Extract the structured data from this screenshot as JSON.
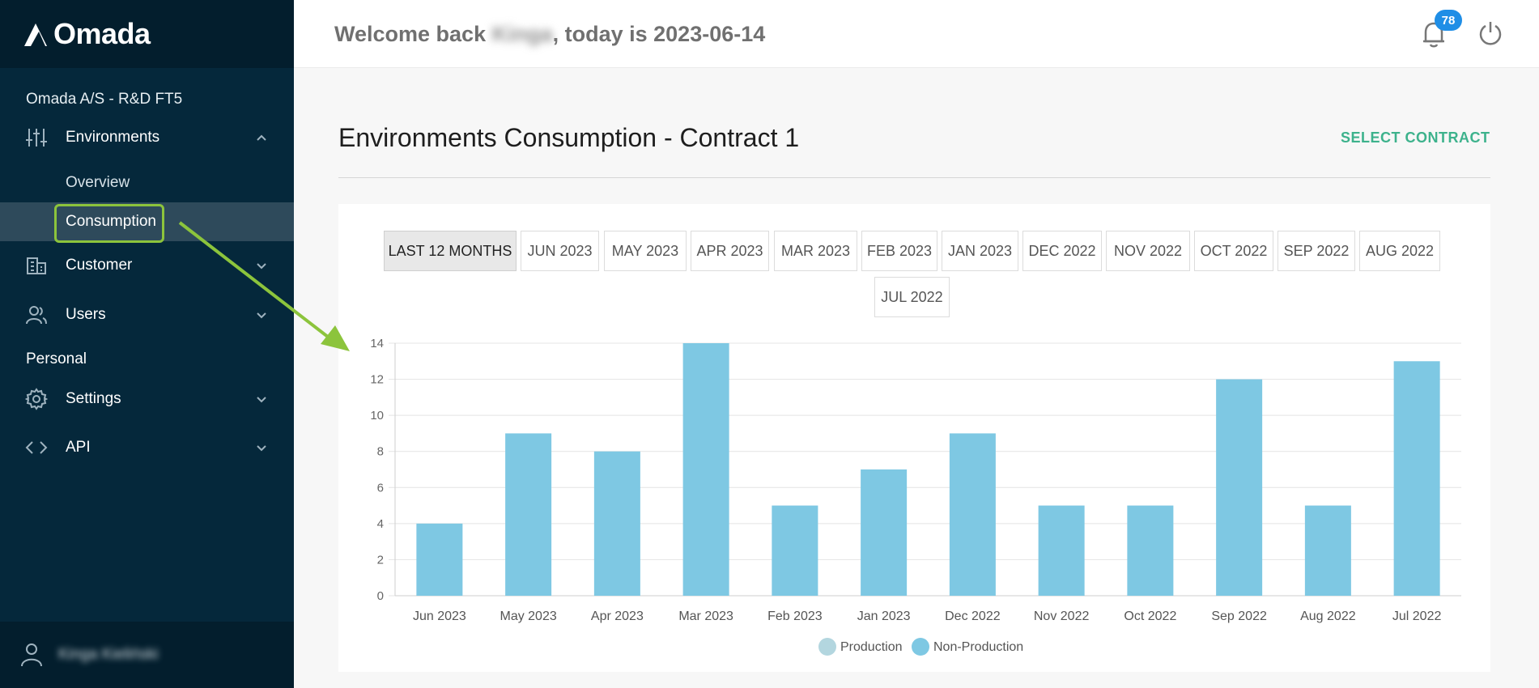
{
  "app": {
    "brand": "Omada"
  },
  "sidebar": {
    "org": "Omada A/S - R&D FT5",
    "environments": {
      "label": "Environments",
      "icon": "sliders-icon"
    },
    "sub_items": [
      {
        "label": "Overview"
      },
      {
        "label": "Consumption",
        "active": true
      }
    ],
    "customer": {
      "label": "Customer",
      "icon": "building-icon"
    },
    "users": {
      "label": "Users",
      "icon": "users-icon"
    },
    "personal_section": "Personal",
    "settings": {
      "label": "Settings",
      "icon": "gear-icon"
    },
    "api": {
      "label": "API",
      "icon": "code-icon"
    },
    "user_name": "Kinga Kieliński"
  },
  "header": {
    "welcome_prefix": "Welcome back ",
    "user_first": "Kinga",
    "welcome_suffix": ", today is 2023-06-14",
    "notification_count": "78"
  },
  "main": {
    "title": "Environments Consumption - Contract 1",
    "select_contract": "SELECT CONTRACT",
    "tabs": [
      "LAST 12 MONTHS",
      "JUN 2023",
      "MAY 2023",
      "APR 2023",
      "MAR 2023",
      "FEB 2023",
      "JAN 2023",
      "DEC 2022",
      "NOV 2022",
      "OCT 2022",
      "SEP 2022",
      "AUG 2022",
      "JUL 2022"
    ],
    "active_tab": "LAST 12 MONTHS"
  },
  "chart_data": {
    "type": "bar",
    "categories": [
      "Jun 2023",
      "May 2023",
      "Apr 2023",
      "Mar 2023",
      "Feb 2023",
      "Jan 2023",
      "Dec 2022",
      "Nov 2022",
      "Oct 2022",
      "Sep 2022",
      "Aug 2022",
      "Jul 2022"
    ],
    "series": [
      {
        "name": "Production",
        "color": "#b3d6df",
        "values": [
          0,
          0,
          0,
          0,
          0,
          0,
          0,
          0,
          0,
          0,
          0,
          0
        ]
      },
      {
        "name": "Non-Production",
        "color": "#7ec8e3",
        "values": [
          4,
          9,
          8,
          14,
          5,
          7,
          9,
          5,
          5,
          12,
          5,
          13
        ]
      }
    ],
    "yticks": [
      "0",
      "2",
      "4",
      "6",
      "8",
      "10",
      "12",
      "14"
    ],
    "ylim": [
      0,
      14
    ],
    "grid": true,
    "legend": "bottom"
  },
  "colors": {
    "sidebar": "#05283b",
    "accent": "#3db28c",
    "highlight": "#8cc43c",
    "bar": "#7ec8e3"
  }
}
